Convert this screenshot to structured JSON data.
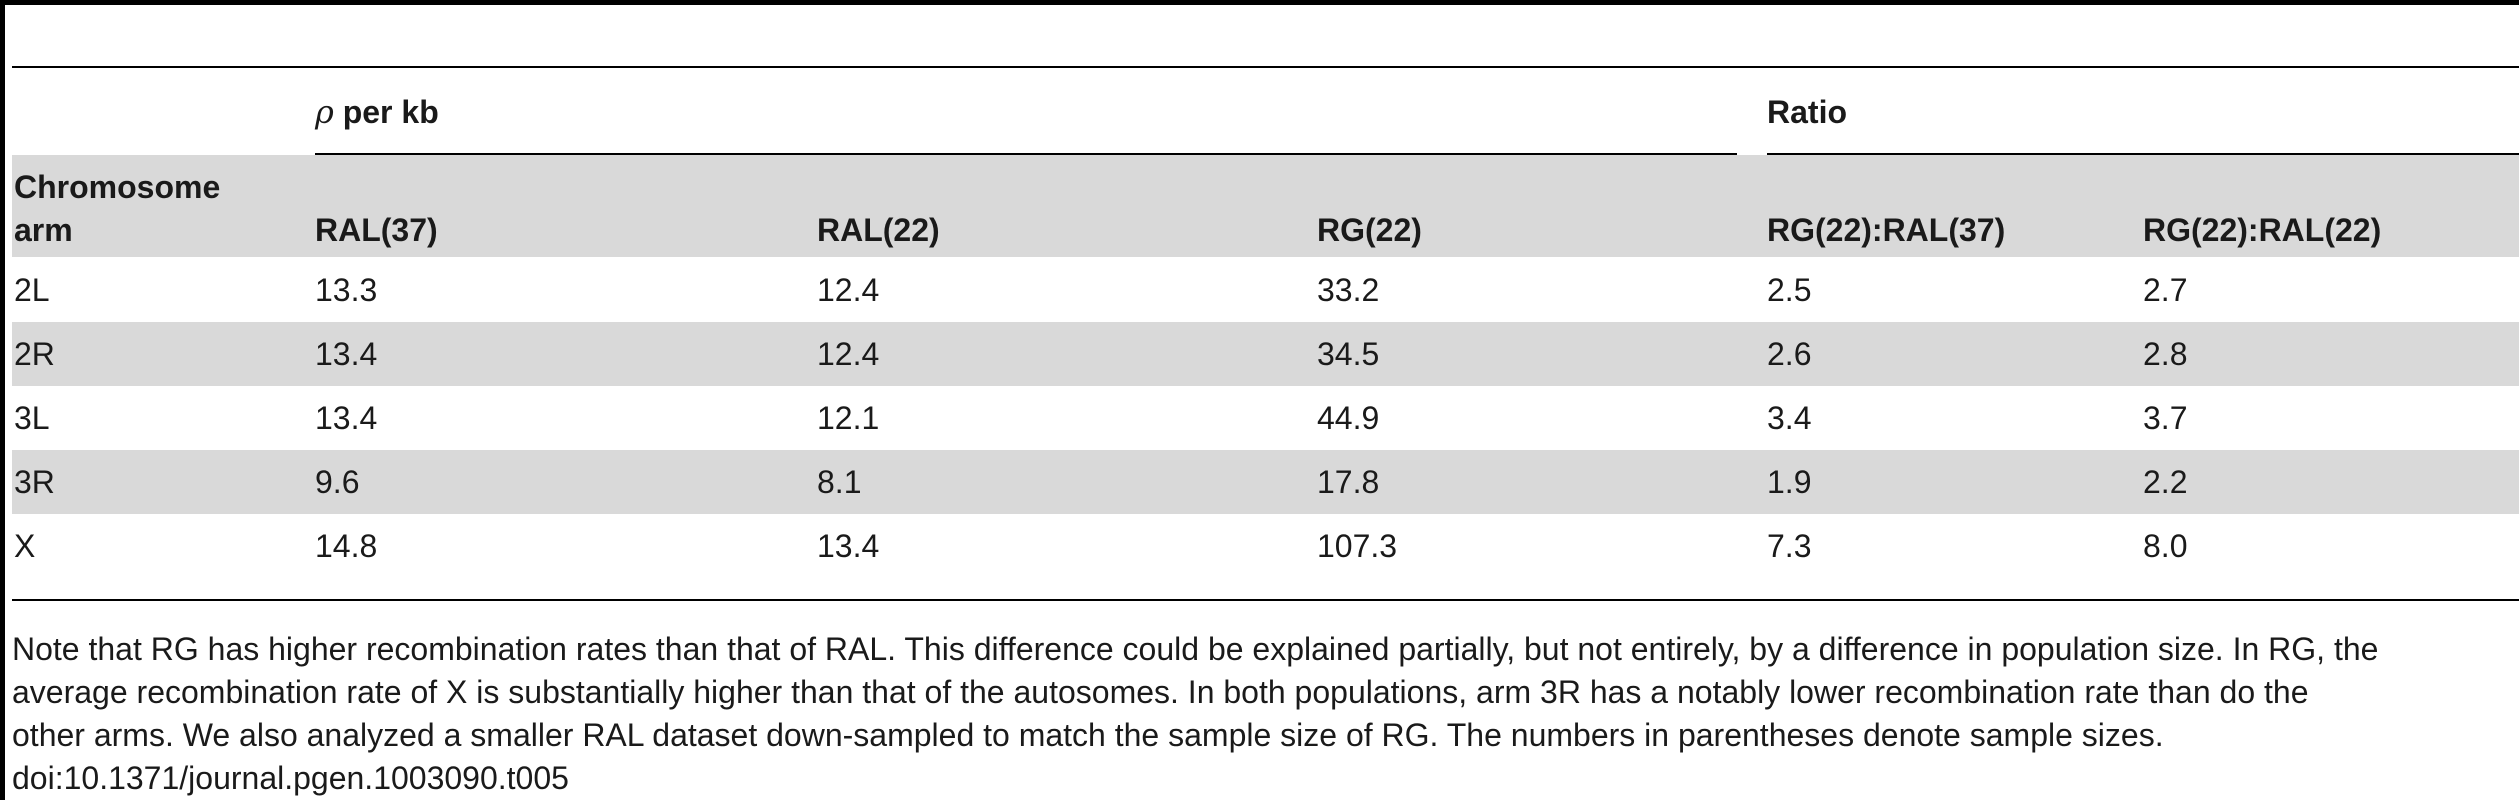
{
  "table": {
    "group_headers": {
      "rho_symbol": "ρ",
      "rho_label": "per kb",
      "ratio_label": "Ratio"
    },
    "columns": [
      "Chromosome arm",
      "RAL(37)",
      "RAL(22)",
      "RG(22)",
      "RG(22):RAL(37)",
      "RG(22):RAL(22)"
    ],
    "column_header_lines": {
      "chromosome_line1": "Chromosome",
      "chromosome_line2": "arm"
    },
    "rows": [
      [
        "2L",
        "13.3",
        "12.4",
        "33.2",
        "2.5",
        "2.7"
      ],
      [
        "2R",
        "13.4",
        "12.4",
        "34.5",
        "2.6",
        "2.8"
      ],
      [
        "3L",
        "13.4",
        "12.1",
        "44.9",
        "3.4",
        "3.7"
      ],
      [
        "3R",
        "9.6",
        "8.1",
        "17.8",
        "1.9",
        "2.2"
      ],
      [
        "X",
        "14.8",
        "13.4",
        "107.3",
        "7.3",
        "8.0"
      ]
    ]
  },
  "footnote": {
    "lines": [
      "Note that RG has higher recombination rates than that of RAL. This difference could be explained partially, but not entirely, by a difference in population size. In RG, the",
      "average recombination rate of X is substantially higher than that of the autosomes. In both populations, arm 3R has a notably lower recombination rate than do the",
      "other arms. We also analyzed a smaller RAL dataset down-sampled to match the sample size of RG. The numbers in parentheses denote sample sizes."
    ],
    "doi": "doi:10.1371/journal.pgen.1003090.t005"
  }
}
